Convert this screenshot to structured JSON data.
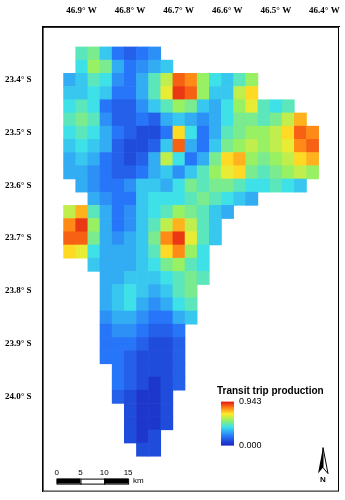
{
  "chart_data": {
    "type": "heatmap",
    "xlim": [
      -46.98,
      -46.37
    ],
    "ylim": [
      -24.18,
      -23.3
    ],
    "xticks": [
      {
        "value": -46.9,
        "label": "46.9° W"
      },
      {
        "value": -46.8,
        "label": "46.8° W"
      },
      {
        "value": -46.7,
        "label": "46.7° W"
      },
      {
        "value": -46.6,
        "label": "46.6° W"
      },
      {
        "value": -46.5,
        "label": "46.5° W"
      },
      {
        "value": -46.4,
        "label": "46.4° W"
      }
    ],
    "yticks": [
      {
        "value": -23.4,
        "label": "23.4° S"
      },
      {
        "value": -23.5,
        "label": "23.5° S"
      },
      {
        "value": -23.6,
        "label": "23.6° S"
      },
      {
        "value": -23.7,
        "label": "23.7° S"
      },
      {
        "value": -23.8,
        "label": "23.8° S"
      },
      {
        "value": -23.9,
        "label": "23.9° S"
      },
      {
        "value": -24.0,
        "label": "24.0° S"
      }
    ],
    "grid": false,
    "x": [
      -46.95,
      -46.925,
      -46.9,
      -46.875,
      -46.85,
      -46.825,
      -46.8,
      -46.775,
      -46.75,
      -46.725,
      -46.7,
      -46.675,
      -46.65,
      -46.625,
      -46.6,
      -46.575,
      -46.55,
      -46.525,
      -46.5,
      -46.475,
      -46.45,
      -46.425,
      -46.4
    ],
    "y": [
      -23.35,
      -23.375,
      -23.4,
      -23.425,
      -23.45,
      -23.475,
      -23.5,
      -23.525,
      -23.55,
      -23.575,
      -23.6,
      -23.625,
      -23.65,
      -23.675,
      -23.7,
      -23.725,
      -23.75,
      -23.775,
      -23.8,
      -23.825,
      -23.85,
      -23.875,
      -23.9,
      -23.925,
      -23.95,
      -23.975,
      -24.0,
      -24.025,
      -24.05,
      -24.075,
      -24.1
    ],
    "cells": [
      [
        null,
        null,
        0.45,
        0.5,
        0.35,
        0.2,
        0.15,
        0.2,
        0.25,
        null,
        null,
        null,
        null,
        null,
        null,
        null,
        null,
        null,
        null,
        null,
        null,
        null,
        null
      ],
      [
        null,
        null,
        0.4,
        0.55,
        0.5,
        0.3,
        0.2,
        0.25,
        0.3,
        0.35,
        null,
        null,
        null,
        null,
        null,
        null,
        null,
        null,
        null,
        null,
        null,
        null,
        null
      ],
      [
        null,
        0.3,
        0.35,
        0.45,
        0.4,
        0.25,
        0.2,
        0.3,
        0.45,
        0.6,
        0.85,
        0.8,
        0.55,
        0.4,
        0.35,
        0.45,
        0.55,
        null,
        null,
        null,
        null,
        null,
        null
      ],
      [
        null,
        0.35,
        0.35,
        0.4,
        0.35,
        0.2,
        0.2,
        0.3,
        0.45,
        0.65,
        0.9,
        0.85,
        0.55,
        0.35,
        0.35,
        0.6,
        0.7,
        null,
        null,
        null,
        null,
        null,
        null
      ],
      [
        null,
        0.4,
        0.45,
        0.4,
        0.2,
        0.15,
        0.15,
        0.25,
        0.35,
        0.45,
        0.55,
        0.5,
        0.35,
        0.3,
        0.4,
        0.55,
        0.65,
        0.45,
        0.4,
        0.45,
        null,
        null,
        null
      ],
      [
        null,
        0.45,
        0.5,
        0.45,
        0.25,
        0.15,
        0.15,
        0.2,
        0.15,
        0.3,
        0.35,
        0.3,
        0.25,
        0.3,
        0.4,
        0.5,
        0.5,
        0.45,
        0.5,
        0.6,
        0.75,
        null,
        null
      ],
      [
        null,
        0.4,
        0.45,
        0.4,
        0.3,
        0.2,
        0.15,
        0.1,
        0.1,
        0.2,
        0.7,
        0.4,
        0.2,
        0.3,
        0.45,
        0.5,
        0.55,
        0.55,
        0.6,
        0.7,
        0.85,
        0.8,
        null
      ],
      [
        null,
        0.35,
        0.4,
        0.35,
        0.3,
        0.15,
        0.1,
        0.1,
        0.15,
        0.35,
        0.85,
        0.3,
        0.2,
        0.35,
        0.5,
        0.55,
        0.6,
        0.55,
        0.6,
        0.65,
        0.8,
        0.85,
        null
      ],
      [
        null,
        0.3,
        0.35,
        0.3,
        0.2,
        0.15,
        0.1,
        0.15,
        0.3,
        0.6,
        0.4,
        0.2,
        0.3,
        0.5,
        0.7,
        0.75,
        0.55,
        0.5,
        0.55,
        0.6,
        0.7,
        0.75,
        null
      ],
      [
        null,
        0.3,
        0.3,
        0.25,
        0.2,
        0.15,
        0.15,
        0.2,
        0.3,
        0.35,
        0.25,
        0.35,
        0.45,
        0.55,
        0.65,
        0.7,
        0.5,
        0.45,
        0.5,
        0.55,
        0.6,
        0.55,
        null
      ],
      [
        null,
        null,
        0.3,
        0.25,
        0.2,
        0.2,
        0.25,
        0.35,
        0.35,
        0.3,
        0.4,
        0.5,
        0.45,
        0.5,
        0.5,
        0.45,
        0.4,
        0.4,
        0.45,
        0.4,
        0.35,
        null,
        null
      ],
      [
        null,
        null,
        null,
        0.3,
        0.25,
        0.2,
        0.2,
        0.35,
        0.4,
        0.4,
        0.4,
        0.45,
        0.5,
        0.45,
        0.4,
        0.35,
        0.3,
        null,
        null,
        null,
        null,
        null,
        null
      ],
      [
        null,
        0.6,
        0.75,
        0.45,
        0.3,
        0.2,
        0.25,
        0.35,
        0.4,
        0.45,
        0.55,
        0.5,
        0.45,
        0.35,
        0.3,
        null,
        null,
        null,
        null,
        null,
        null,
        null,
        null
      ],
      [
        null,
        0.8,
        0.9,
        0.55,
        0.3,
        0.2,
        0.25,
        0.35,
        0.45,
        0.6,
        0.75,
        0.6,
        0.45,
        0.35,
        null,
        null,
        null,
        null,
        null,
        null,
        null,
        null,
        null
      ],
      [
        null,
        0.85,
        0.85,
        0.5,
        0.3,
        0.25,
        0.3,
        0.35,
        0.5,
        0.8,
        0.9,
        0.65,
        0.45,
        0.35,
        null,
        null,
        null,
        null,
        null,
        null,
        null,
        null,
        null
      ],
      [
        null,
        0.7,
        0.65,
        0.4,
        0.3,
        0.3,
        0.3,
        0.35,
        0.45,
        0.7,
        0.8,
        0.55,
        0.4,
        null,
        null,
        null,
        null,
        null,
        null,
        null,
        null,
        null,
        null
      ],
      [
        null,
        null,
        null,
        0.35,
        0.3,
        0.3,
        0.3,
        0.35,
        0.4,
        0.5,
        0.55,
        0.45,
        0.4,
        null,
        null,
        null,
        null,
        null,
        null,
        null,
        null,
        null,
        null
      ],
      [
        null,
        null,
        null,
        null,
        0.3,
        0.3,
        0.35,
        0.35,
        0.35,
        0.4,
        0.45,
        0.5,
        0.45,
        null,
        null,
        null,
        null,
        null,
        null,
        null,
        null,
        null,
        null
      ],
      [
        null,
        null,
        null,
        null,
        0.3,
        0.35,
        0.4,
        0.35,
        0.3,
        0.35,
        0.45,
        0.5,
        null,
        null,
        null,
        null,
        null,
        null,
        null,
        null,
        null,
        null,
        null
      ],
      [
        null,
        null,
        null,
        null,
        0.3,
        0.35,
        0.4,
        0.3,
        0.25,
        0.3,
        0.4,
        0.45,
        null,
        null,
        null,
        null,
        null,
        null,
        null,
        null,
        null,
        null,
        null
      ],
      [
        null,
        null,
        null,
        null,
        0.25,
        0.3,
        0.3,
        0.25,
        0.2,
        0.2,
        0.3,
        0.35,
        null,
        null,
        null,
        null,
        null,
        null,
        null,
        null,
        null,
        null,
        null
      ],
      [
        null,
        null,
        null,
        null,
        0.2,
        0.25,
        0.25,
        0.2,
        0.15,
        0.15,
        0.2,
        null,
        null,
        null,
        null,
        null,
        null,
        null,
        null,
        null,
        null,
        null,
        null
      ],
      [
        null,
        null,
        null,
        null,
        0.2,
        0.2,
        0.2,
        0.15,
        0.1,
        0.1,
        0.15,
        null,
        null,
        null,
        null,
        null,
        null,
        null,
        null,
        null,
        null,
        null,
        null
      ],
      [
        null,
        null,
        null,
        null,
        0.2,
        0.2,
        0.15,
        0.1,
        0.1,
        0.1,
        0.15,
        null,
        null,
        null,
        null,
        null,
        null,
        null,
        null,
        null,
        null,
        null,
        null
      ],
      [
        null,
        null,
        null,
        null,
        null,
        0.2,
        0.15,
        0.1,
        0.1,
        0.1,
        0.15,
        null,
        null,
        null,
        null,
        null,
        null,
        null,
        null,
        null,
        null,
        null,
        null
      ],
      [
        null,
        null,
        null,
        null,
        null,
        0.2,
        0.15,
        0.1,
        0.05,
        0.1,
        0.15,
        null,
        null,
        null,
        null,
        null,
        null,
        null,
        null,
        null,
        null,
        null,
        null
      ],
      [
        null,
        null,
        null,
        null,
        null,
        0.15,
        0.1,
        0.05,
        0.05,
        0.1,
        null,
        null,
        null,
        null,
        null,
        null,
        null,
        null,
        null,
        null,
        null,
        null,
        null
      ],
      [
        null,
        null,
        null,
        null,
        null,
        null,
        0.1,
        0.05,
        0.05,
        0.1,
        null,
        null,
        null,
        null,
        null,
        null,
        null,
        null,
        null,
        null,
        null,
        null,
        null
      ],
      [
        null,
        null,
        null,
        null,
        null,
        null,
        0.1,
        0.05,
        0.05,
        0.1,
        null,
        null,
        null,
        null,
        null,
        null,
        null,
        null,
        null,
        null,
        null,
        null,
        null
      ],
      [
        null,
        null,
        null,
        null,
        null,
        null,
        0.1,
        0.05,
        0.1,
        null,
        null,
        null,
        null,
        null,
        null,
        null,
        null,
        null,
        null,
        null,
        null,
        null,
        null
      ],
      [
        null,
        null,
        null,
        null,
        null,
        null,
        null,
        0.1,
        0.1,
        null,
        null,
        null,
        null,
        null,
        null,
        null,
        null,
        null,
        null,
        null,
        null,
        null,
        null
      ]
    ],
    "colorbar": {
      "title": "Transit trip production",
      "range": [
        0,
        0.943
      ],
      "ticks": [
        {
          "value": 0.943,
          "label": "0.943"
        },
        {
          "value": 0,
          "label": "0.000"
        }
      ]
    },
    "scale_bar": {
      "ticks": [
        0,
        5,
        10,
        15
      ],
      "unit": "km"
    },
    "north_arrow": "N"
  }
}
